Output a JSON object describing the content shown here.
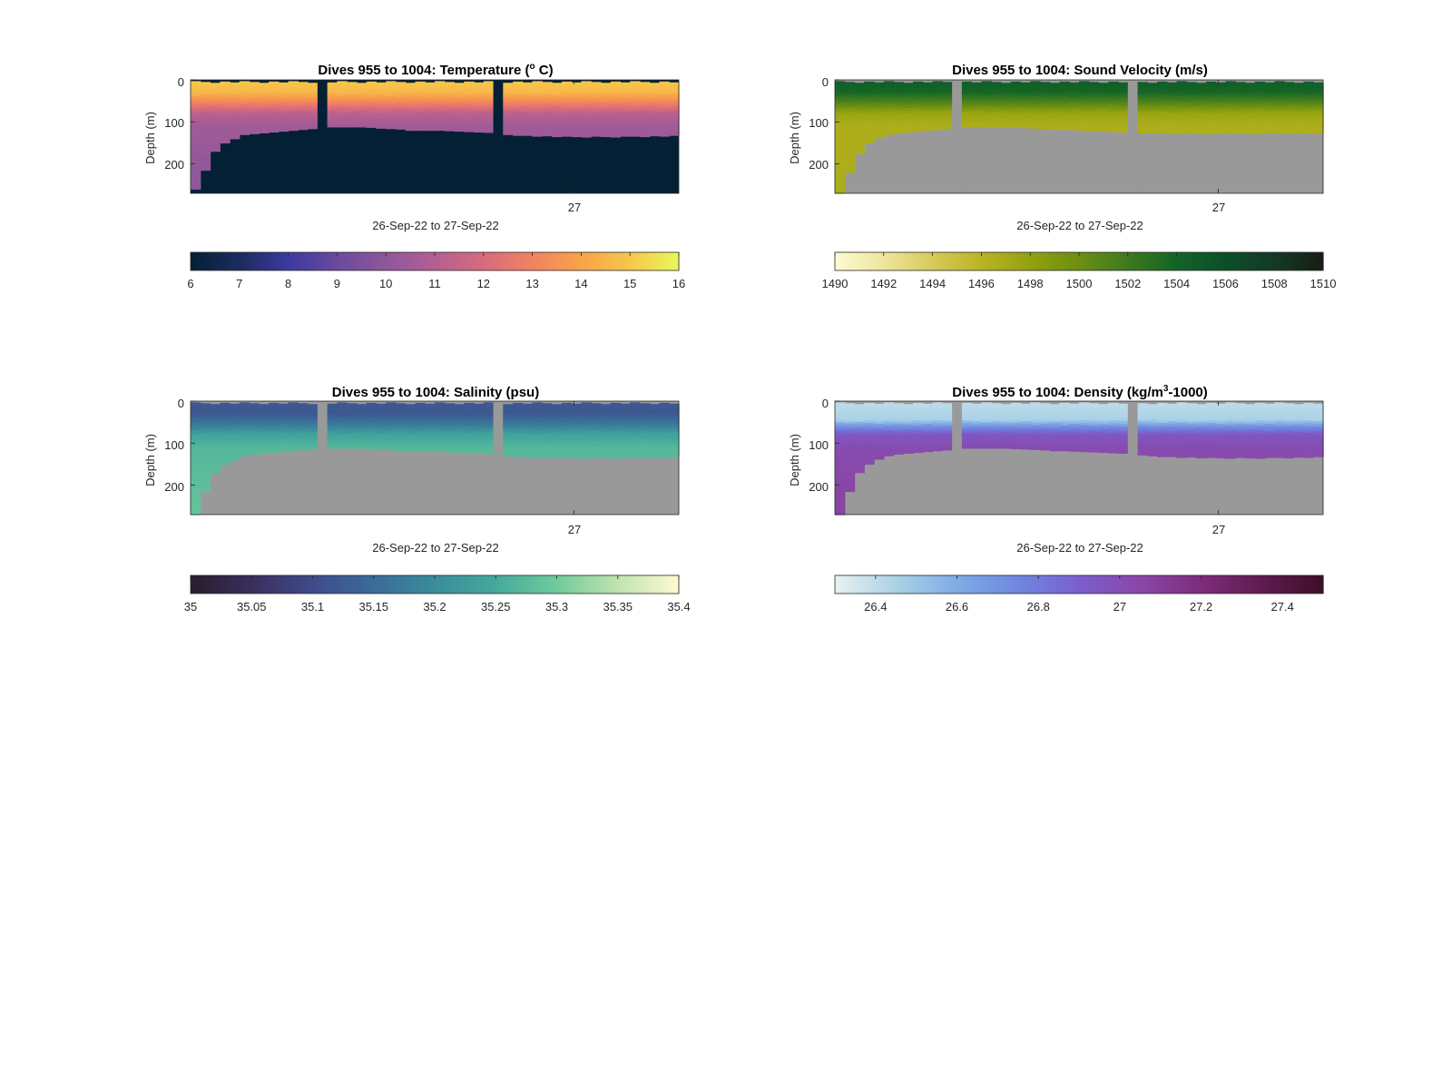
{
  "chart_data": [
    {
      "type": "heatmap",
      "title": "Dives 955 to 1004: Temperature (",
      "title_sup": "o",
      "title_tail": " C)",
      "ylabel": "Depth (m)",
      "xlabel": "26-Sep-22 to 27-Sep-22",
      "x_tick_labels": [
        "27"
      ],
      "y_tick_labels": [
        "0",
        "100",
        "200"
      ],
      "ylim": [
        0,
        270
      ],
      "y_reversed": true,
      "dives": [
        955,
        1004
      ],
      "gap_dives": [
        968,
        986
      ],
      "bottom_depth_m": [
        260,
        215,
        170,
        150,
        140,
        130,
        128,
        126,
        124,
        122,
        120,
        118,
        116,
        114,
        112,
        112,
        112,
        112,
        113,
        115,
        116,
        117,
        120,
        120,
        120,
        120,
        121,
        122,
        123,
        124,
        125,
        128,
        130,
        132,
        132,
        134,
        133,
        135,
        134,
        135,
        136,
        134,
        135,
        136,
        134,
        134,
        135,
        133,
        134,
        132
      ],
      "no_data_color": "#042035",
      "colorbar": {
        "label_ticks": [
          "6",
          "7",
          "8",
          "9",
          "10",
          "11",
          "12",
          "13",
          "14",
          "15",
          "16"
        ],
        "range": [
          6,
          16
        ],
        "colors": [
          "#042035",
          "#1d2c5f",
          "#3b3aa1",
          "#6a4a9e",
          "#8e579b",
          "#b35f92",
          "#d86a7e",
          "#f18260",
          "#f8a24a",
          "#f6c64a",
          "#e9f65a"
        ]
      },
      "profile": [
        {
          "depth_m": 5,
          "value": 15.0
        },
        {
          "depth_m": 30,
          "value": 14.6
        },
        {
          "depth_m": 55,
          "value": 13.0
        },
        {
          "depth_m": 80,
          "value": 11.2
        },
        {
          "depth_m": 110,
          "value": 10.5
        },
        {
          "depth_m": 200,
          "value": 10.1
        },
        {
          "depth_m": 270,
          "value": 10.0
        }
      ]
    },
    {
      "type": "heatmap",
      "title": "Dives 955 to 1004: Sound Velocity (m/s)",
      "ylabel": "Depth (m)",
      "xlabel": "26-Sep-22 to 27-Sep-22",
      "x_tick_labels": [
        "27"
      ],
      "y_tick_labels": [
        "0",
        "100",
        "200"
      ],
      "ylim": [
        0,
        270
      ],
      "y_reversed": true,
      "dives": [
        955,
        1004
      ],
      "gap_dives": [
        967,
        985
      ],
      "bottom_depth_m": [
        270,
        220,
        175,
        150,
        138,
        130,
        126,
        124,
        122,
        120,
        118,
        116,
        114,
        112,
        112,
        112,
        112,
        112,
        113,
        114,
        115,
        116,
        118,
        118,
        119,
        120,
        121,
        122,
        123,
        124,
        125,
        126,
        126,
        126,
        127,
        128,
        126,
        127,
        128,
        127,
        126,
        127,
        128,
        127,
        126,
        126,
        127,
        126,
        127,
        126
      ],
      "no_data_color": "#999999",
      "colorbar": {
        "label_ticks": [
          "1490",
          "1492",
          "1494",
          "1496",
          "1498",
          "1500",
          "1502",
          "1504",
          "1506",
          "1508",
          "1510"
        ],
        "range": [
          1490,
          1510
        ],
        "colors": [
          "#fdfbd2",
          "#ede59a",
          "#d7c95a",
          "#b9b424",
          "#93a10e",
          "#6c8f12",
          "#3e7a1e",
          "#136427",
          "#0d4f2a",
          "#133a24",
          "#191e14"
        ]
      },
      "profile": [
        {
          "depth_m": 5,
          "value": 1504.6
        },
        {
          "depth_m": 30,
          "value": 1503.8
        },
        {
          "depth_m": 55,
          "value": 1501.0
        },
        {
          "depth_m": 80,
          "value": 1497.6
        },
        {
          "depth_m": 110,
          "value": 1496.6
        },
        {
          "depth_m": 200,
          "value": 1496.6
        },
        {
          "depth_m": 270,
          "value": 1496.8
        }
      ]
    },
    {
      "type": "heatmap",
      "title": "Dives 955 to 1004: Salinity (psu)",
      "ylabel": "Depth (m)",
      "xlabel": "26-Sep-22 to 27-Sep-22",
      "x_tick_labels": [
        "27"
      ],
      "y_tick_labels": [
        "0",
        "100",
        "200"
      ],
      "ylim": [
        0,
        270
      ],
      "y_reversed": true,
      "dives": [
        955,
        1004
      ],
      "gap_dives": [
        968,
        986
      ],
      "bottom_depth_m": [
        270,
        215,
        170,
        150,
        140,
        130,
        126,
        124,
        122,
        120,
        118,
        116,
        114,
        112,
        112,
        112,
        112,
        112,
        113,
        115,
        116,
        117,
        118,
        119,
        120,
        120,
        121,
        122,
        123,
        124,
        125,
        128,
        130,
        132,
        132,
        134,
        133,
        135,
        134,
        135,
        136,
        134,
        135,
        136,
        134,
        134,
        135,
        133,
        134,
        132
      ],
      "no_data_color": "#999999",
      "colorbar": {
        "label_ticks": [
          "35",
          "35.05",
          "35.1",
          "35.15",
          "35.2",
          "35.25",
          "35.3",
          "35.35",
          "35.4"
        ],
        "range": [
          35,
          35.4
        ],
        "colors": [
          "#2a1d2f",
          "#3a2f5e",
          "#3f4b8c",
          "#3a6c98",
          "#3b8c9c",
          "#44aa9b",
          "#6fca9c",
          "#bfe3ad",
          "#fbfad0"
        ]
      },
      "profile": [
        {
          "depth_m": 5,
          "value": 35.12
        },
        {
          "depth_m": 30,
          "value": 35.12
        },
        {
          "depth_m": 55,
          "value": 35.17
        },
        {
          "depth_m": 80,
          "value": 35.24
        },
        {
          "depth_m": 110,
          "value": 35.27
        },
        {
          "depth_m": 200,
          "value": 35.28
        },
        {
          "depth_m": 270,
          "value": 35.29
        }
      ]
    },
    {
      "type": "heatmap",
      "title": "Dives 955 to 1004: Density (kg/m",
      "title_sup": "3",
      "title_tail": "-1000)",
      "ylabel": "Depth (m)",
      "xlabel": "26-Sep-22 to 27-Sep-22",
      "x_tick_labels": [
        "27"
      ],
      "y_tick_labels": [
        "0",
        "100",
        "200"
      ],
      "ylim": [
        0,
        270
      ],
      "y_reversed": true,
      "dives": [
        955,
        1004
      ],
      "gap_dives": [
        967,
        985
      ],
      "bottom_depth_m": [
        270,
        215,
        170,
        150,
        138,
        130,
        126,
        124,
        122,
        120,
        118,
        116,
        114,
        112,
        112,
        112,
        112,
        112,
        113,
        114,
        115,
        116,
        118,
        118,
        119,
        120,
        121,
        122,
        123,
        124,
        125,
        128,
        130,
        132,
        132,
        134,
        133,
        135,
        134,
        135,
        136,
        134,
        135,
        136,
        134,
        134,
        135,
        133,
        134,
        132
      ],
      "no_data_color": "#999999",
      "colorbar": {
        "label_ticks": [
          "26.4",
          "26.6",
          "26.8",
          "27",
          "27.2",
          "27.4"
        ],
        "range": [
          26.3,
          27.5
        ],
        "colors": [
          "#e6f1f1",
          "#a9d1e6",
          "#7fabe5",
          "#6f86e0",
          "#7b5fce",
          "#8a47a9",
          "#7e2c7c",
          "#601c50",
          "#3d0f2b"
        ]
      },
      "profile": [
        {
          "depth_m": 5,
          "value": 26.4
        },
        {
          "depth_m": 45,
          "value": 26.45
        },
        {
          "depth_m": 60,
          "value": 26.7
        },
        {
          "depth_m": 80,
          "value": 26.95
        },
        {
          "depth_m": 110,
          "value": 27.02
        },
        {
          "depth_m": 200,
          "value": 27.06
        },
        {
          "depth_m": 270,
          "value": 27.07
        }
      ]
    }
  ]
}
